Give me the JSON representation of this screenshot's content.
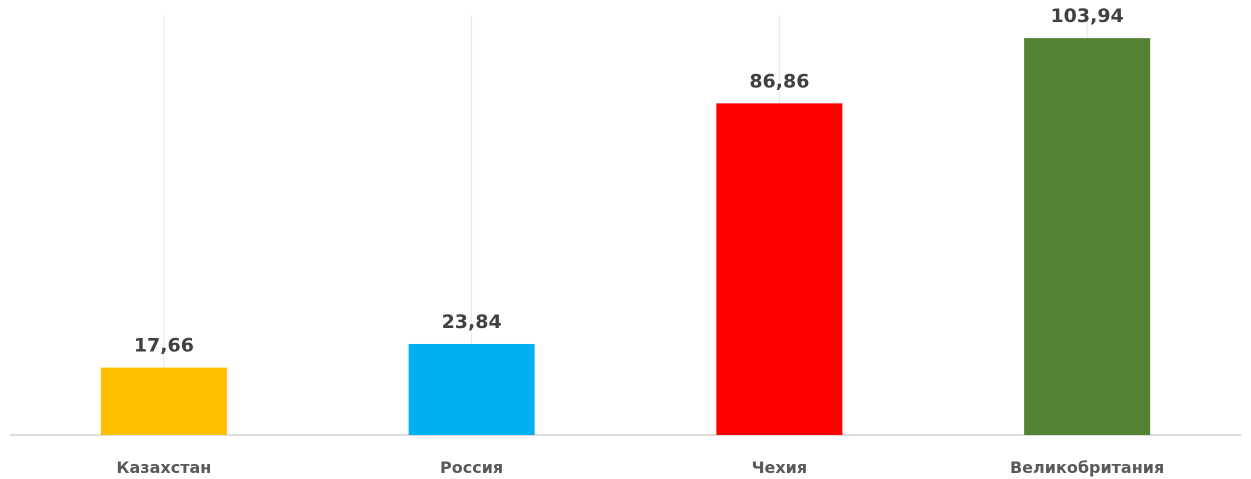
{
  "chart_data": {
    "type": "bar",
    "categories": [
      "Казахстан",
      "Россия",
      "Чехия",
      "Великобритания"
    ],
    "values": [
      17.66,
      23.84,
      86.86,
      103.94
    ],
    "value_labels": [
      "17,66",
      "23,84",
      "86,86",
      "103,94"
    ],
    "colors": [
      "#FFC000",
      "#00B0F0",
      "#FF0000",
      "#548235"
    ],
    "ylim": [
      0,
      110
    ],
    "grid": "vertical",
    "legend": "none"
  }
}
